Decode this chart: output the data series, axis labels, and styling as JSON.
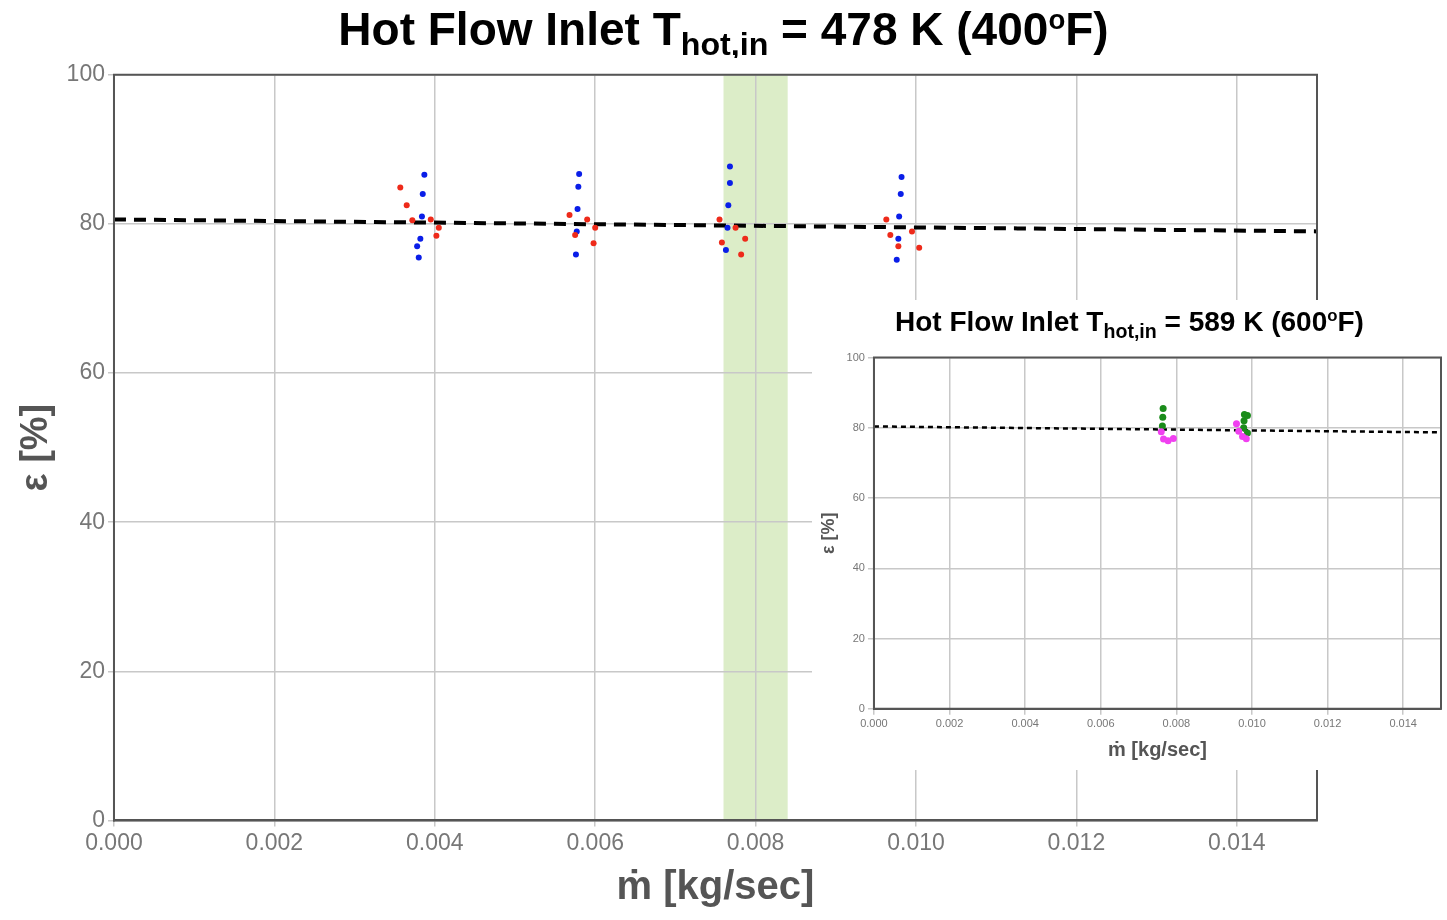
{
  "chart_data": [
    {
      "type": "scatter",
      "title": "Hot Flow Inlet T$_{hot,in}$ = 478 K (400$^{o}$F)",
      "xlabel": "ṁ [kg/sec]",
      "ylabel": "ε [%]",
      "xlim": [
        0,
        0.015
      ],
      "xticks": [
        {
          "value": 0,
          "label": "0.000"
        },
        {
          "value": 0.002,
          "label": "0.002"
        },
        {
          "value": 0.004,
          "label": "0.004"
        },
        {
          "value": 0.006,
          "label": "0.006"
        },
        {
          "value": 0.008,
          "label": "0.008"
        },
        {
          "value": 0.01,
          "label": "0.010"
        },
        {
          "value": 0.012,
          "label": "0.012"
        },
        {
          "value": 0.014,
          "label": "0.014"
        }
      ],
      "ylim": [
        0,
        100
      ],
      "yticks": [
        0,
        20,
        40,
        60,
        80,
        100
      ],
      "grid": true,
      "legend": false,
      "marker": "circle",
      "bands": [
        {
          "axis": "x",
          "from": 0.0076,
          "to": 0.0084,
          "color": "#dcedc8"
        }
      ],
      "series": [
        {
          "color": "#ee2a1a",
          "x": [
            0.00357,
            0.00365,
            0.00372,
            0.00395,
            0.00405,
            0.00402,
            0.00568,
            0.00575,
            0.0059,
            0.006,
            0.00598,
            0.00755,
            0.00758,
            0.00775,
            0.00787,
            0.00782,
            0.00963,
            0.00968,
            0.00978,
            0.00995,
            0.01004
          ],
          "values": [
            84.9,
            82.5,
            80.5,
            80.6,
            79.5,
            78.4,
            81.2,
            78.5,
            80.6,
            79.5,
            77.4,
            80.6,
            77.5,
            79.5,
            78,
            75.9,
            80.6,
            78.5,
            77,
            79,
            76.8
          ]
        },
        {
          "color": "#0a1ee8",
          "x": [
            0.00378,
            0.0038,
            0.00382,
            0.00384,
            0.00385,
            0.00387,
            0.00576,
            0.00577,
            0.00578,
            0.00579,
            0.0058,
            0.00763,
            0.00765,
            0.00766,
            0.00768,
            0.00768,
            0.00976,
            0.00978,
            0.00979,
            0.00981,
            0.00982
          ],
          "values": [
            77,
            75.5,
            78,
            81,
            84,
            86.6,
            75.9,
            79,
            82,
            85,
            86.7,
            76.5,
            79.5,
            82.5,
            85.5,
            87.7,
            75.2,
            78,
            81,
            84,
            86.3
          ]
        },
        {
          "type": "line",
          "color": "#000000",
          "marker": "none",
          "line_style": "dashed",
          "x": [
            0,
            0.015
          ],
          "values": [
            80.6,
            79.0
          ]
        }
      ]
    },
    {
      "type": "scatter",
      "title": "Hot Flow Inlet T$_{hot,in}$ = 589 K (600$^{o}$F)",
      "xlabel": "ṁ [kg/sec]",
      "ylabel": "ε [%]",
      "xlim": [
        0,
        0.015
      ],
      "xticks": [
        {
          "value": 0,
          "label": "0.000"
        },
        {
          "value": 0.002,
          "label": "0.002"
        },
        {
          "value": 0.004,
          "label": "0.004"
        },
        {
          "value": 0.006,
          "label": "0.006"
        },
        {
          "value": 0.008,
          "label": "0.008"
        },
        {
          "value": 0.01,
          "label": "0.010"
        },
        {
          "value": 0.012,
          "label": "0.012"
        },
        {
          "value": 0.014,
          "label": "0.014"
        }
      ],
      "ylim": [
        0,
        100
      ],
      "yticks": [
        0,
        20,
        40,
        60,
        80,
        100
      ],
      "grid": true,
      "legend": false,
      "marker": "circle",
      "series": [
        {
          "color": "#f040f0",
          "x": [
            0.0076,
            0.00766,
            0.00778,
            0.00792,
            0.00959,
            0.00965,
            0.00975,
            0.00985
          ],
          "values": [
            78.9,
            76.8,
            76.3,
            77.0,
            81.2,
            79,
            77.5,
            76.9
          ]
        },
        {
          "color": "#1a8c1a",
          "x": [
            0.00763,
            0.00764,
            0.00765,
            0.00978,
            0.00979,
            0.0098,
            0.00988,
            0.00988
          ],
          "values": [
            80.5,
            83,
            85.5,
            80,
            82,
            83.8,
            78.5,
            83.5
          ]
        },
        {
          "type": "line",
          "color": "#000000",
          "marker": "none",
          "line_style": "dotted",
          "x": [
            0,
            0.015
          ],
          "values": [
            80.4,
            78.7
          ]
        }
      ]
    }
  ]
}
